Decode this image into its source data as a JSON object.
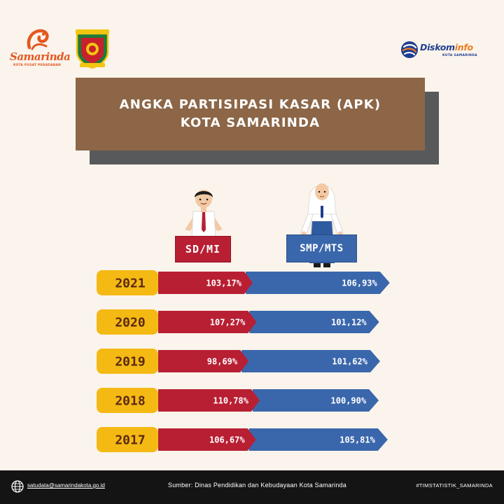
{
  "header": {
    "samarinda_logo": {
      "word": "Samarinda",
      "tagline": "KOTA PUSAT PERADABAN"
    },
    "crest_icon": "kota-samarinda-crest-icon",
    "diskominfo_logo": {
      "word_a": "Diskom",
      "word_b": "info",
      "subtitle": "KOTA SAMARINDA"
    },
    "brand_colors": {
      "orange": "#e2581f",
      "navy": "#1f3f8f",
      "accent_orange": "#ee7c22"
    }
  },
  "title": {
    "line1": "ANGKA PARTISIPASI KASAR (APK)",
    "line2": "KOTA SAMARINDA"
  },
  "labels": {
    "sd": "SD/MI",
    "smp": "SMP/MTS"
  },
  "chart_data": {
    "type": "bar",
    "orientation": "horizontal-stacked",
    "categories": [
      "2021",
      "2020",
      "2019",
      "2018",
      "2017"
    ],
    "series": [
      {
        "name": "SD/MI",
        "color": "#b81f33",
        "values": [
          103.17,
          107.27,
          98.69,
          110.78,
          106.67
        ],
        "labels": [
          "103,17%",
          "107,27%",
          "98,69%",
          "110,78%",
          "106,67%"
        ]
      },
      {
        "name": "SMP/MTS",
        "color": "#3a67ac",
        "values": [
          106.93,
          101.12,
          101.62,
          100.9,
          105.81
        ],
        "labels": [
          "106,93%",
          "101,12%",
          "101,62%",
          "100,90%",
          "105,81%"
        ]
      }
    ],
    "year_badge_color": "#f5b914",
    "grid": false,
    "legend": "top-center"
  },
  "footer": {
    "email": "satudata@samarindakota.go.id",
    "source": "Sumber: Dinas Pendidikan dan Kebudayaan Kota Samarinda",
    "hashtag": "#TIMSTATISTIK_SAMARINDA"
  }
}
